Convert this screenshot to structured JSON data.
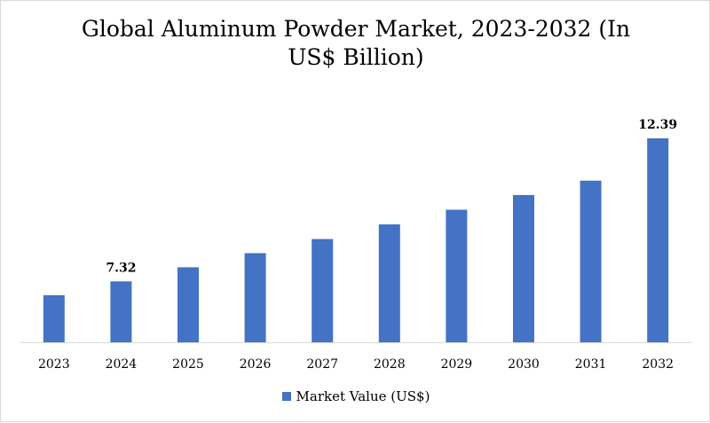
{
  "chart_data": {
    "type": "bar",
    "title": "Global Aluminum Powder Market, 2023-2032 (In US$ Billion)",
    "categories": [
      "2023",
      "2024",
      "2025",
      "2026",
      "2027",
      "2028",
      "2029",
      "2030",
      "2031",
      "2032"
    ],
    "series": [
      {
        "name": "Market Value (US$)",
        "values": [
          6.83,
          7.32,
          7.82,
          8.32,
          8.82,
          9.34,
          9.86,
          10.38,
          10.89,
          12.39
        ]
      }
    ],
    "data_labels": {
      "1": "7.32",
      "9": "12.39"
    },
    "ylim": [
      5.16,
      12.39
    ],
    "yaxis_visible": false,
    "grid": false,
    "legend_position": "bottom",
    "colors": {
      "bar": "#4472c4",
      "axis": "#d9d9d9",
      "text": "#000000"
    }
  }
}
